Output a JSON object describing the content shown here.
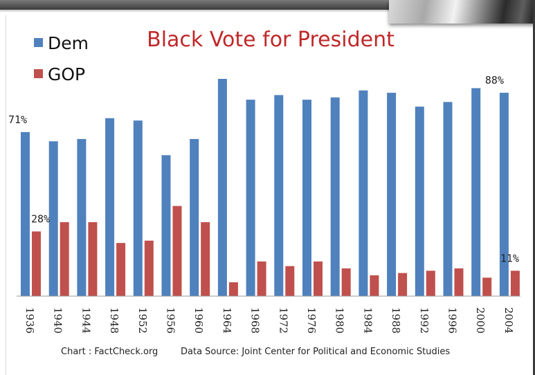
{
  "chart_data": {
    "type": "bar",
    "title": "Black Vote for President",
    "categories": [
      "1936",
      "1940",
      "1944",
      "1948",
      "1952",
      "1956",
      "1960",
      "1964",
      "1968",
      "1972",
      "1976",
      "1980",
      "1984",
      "1988",
      "1992",
      "1996",
      "2000",
      "2004"
    ],
    "series": [
      {
        "name": "Dem",
        "color": "#4f81bd",
        "values": [
          71,
          67,
          68,
          77,
          76,
          61,
          68,
          94,
          85,
          87,
          85,
          86,
          89,
          88,
          82,
          84,
          90,
          88
        ]
      },
      {
        "name": "GOP",
        "color": "#c0504d",
        "values": [
          28,
          32,
          32,
          23,
          24,
          39,
          32,
          6,
          15,
          13,
          15,
          12,
          9,
          10,
          11,
          12,
          8,
          11
        ]
      }
    ],
    "data_labels": [
      {
        "series": "Dem",
        "category": "1936",
        "text": "71%"
      },
      {
        "series": "GOP",
        "category": "1936",
        "text": "28%"
      },
      {
        "series": "Dem",
        "category": "2004",
        "text": "88%"
      },
      {
        "series": "GOP",
        "category": "2004",
        "text": "11%"
      }
    ],
    "ylim": [
      0,
      100
    ],
    "grid": false,
    "legend": "top-left"
  },
  "footer": {
    "chart_credit": "Chart : FactCheck.org",
    "data_source": "Data Source:  Joint Center for Political and Economic Studies"
  }
}
